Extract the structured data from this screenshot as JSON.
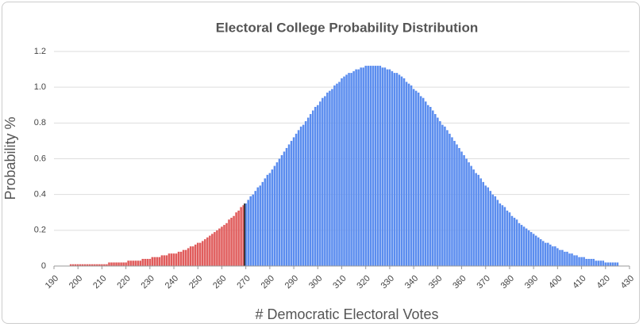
{
  "chart_data": {
    "type": "bar",
    "title": "Electoral College Probability Distribution",
    "x_label": "# Democratic Electoral Votes",
    "y_label": "Probability %",
    "color": "#5b8def",
    "below_color": "#e05c5c",
    "threshold": 270,
    "threshold_color": "#333333",
    "xlim": [
      190,
      430
    ],
    "xticks": [
      190,
      200,
      210,
      220,
      230,
      240,
      250,
      260,
      270,
      280,
      290,
      300,
      310,
      320,
      330,
      340,
      350,
      360,
      370,
      380,
      390,
      400,
      410,
      420,
      430
    ],
    "ylim": [
      0,
      1.2
    ],
    "yticks": [
      0,
      0.2,
      0.4,
      0.6,
      0.8,
      {
        "value": 1,
        "label": "1.0"
      },
      1.2
    ],
    "grid": true,
    "x": [
      197,
      198,
      199,
      200,
      201,
      202,
      203,
      204,
      205,
      206,
      207,
      208,
      209,
      210,
      211,
      212,
      213,
      214,
      215,
      216,
      217,
      218,
      219,
      220,
      221,
      222,
      223,
      224,
      225,
      226,
      227,
      228,
      229,
      230,
      231,
      232,
      233,
      234,
      235,
      236,
      237,
      238,
      239,
      240,
      241,
      242,
      243,
      244,
      245,
      246,
      247,
      248,
      249,
      250,
      251,
      252,
      253,
      254,
      255,
      256,
      257,
      258,
      259,
      260,
      261,
      262,
      263,
      264,
      265,
      266,
      267,
      268,
      269,
      270,
      271,
      272,
      273,
      274,
      275,
      276,
      277,
      278,
      279,
      280,
      281,
      282,
      283,
      284,
      285,
      286,
      287,
      288,
      289,
      290,
      291,
      292,
      293,
      294,
      295,
      296,
      297,
      298,
      299,
      300,
      301,
      302,
      303,
      304,
      305,
      306,
      307,
      308,
      309,
      310,
      311,
      312,
      313,
      314,
      315,
      316,
      317,
      318,
      319,
      320,
      321,
      322,
      323,
      324,
      325,
      326,
      327,
      328,
      329,
      330,
      331,
      332,
      333,
      334,
      335,
      336,
      337,
      338,
      339,
      340,
      341,
      342,
      343,
      344,
      345,
      346,
      347,
      348,
      349,
      350,
      351,
      352,
      353,
      354,
      355,
      356,
      357,
      358,
      359,
      360,
      361,
      362,
      363,
      364,
      365,
      366,
      367,
      368,
      369,
      370,
      371,
      372,
      373,
      374,
      375,
      376,
      377,
      378,
      379,
      380,
      381,
      382,
      383,
      384,
      385,
      386,
      387,
      388,
      389,
      390,
      391,
      392,
      393,
      394,
      395,
      396,
      397,
      398,
      399,
      400,
      401,
      402,
      403,
      404,
      405,
      406,
      407,
      408,
      409,
      410,
      411,
      412,
      413,
      414,
      415,
      416,
      417,
      418,
      419,
      420,
      421,
      422,
      423,
      424,
      425
    ],
    "values": [
      0.01,
      0.01,
      0.01,
      0.01,
      0.01,
      0.01,
      0.01,
      0.01,
      0.01,
      0.01,
      0.01,
      0.01,
      0.01,
      0.01,
      0.01,
      0.01,
      0.02,
      0.02,
      0.02,
      0.02,
      0.02,
      0.02,
      0.02,
      0.02,
      0.03,
      0.03,
      0.03,
      0.03,
      0.03,
      0.03,
      0.04,
      0.04,
      0.04,
      0.04,
      0.05,
      0.05,
      0.05,
      0.05,
      0.06,
      0.06,
      0.06,
      0.07,
      0.07,
      0.07,
      0.07,
      0.08,
      0.08,
      0.09,
      0.09,
      0.1,
      0.11,
      0.11,
      0.12,
      0.13,
      0.13,
      0.14,
      0.15,
      0.16,
      0.17,
      0.18,
      0.19,
      0.2,
      0.21,
      0.22,
      0.23,
      0.24,
      0.26,
      0.27,
      0.28,
      0.3,
      0.31,
      0.33,
      0.34,
      0.35,
      0.37,
      0.39,
      0.4,
      0.42,
      0.44,
      0.45,
      0.47,
      0.49,
      0.51,
      0.52,
      0.54,
      0.56,
      0.58,
      0.6,
      0.62,
      0.64,
      0.66,
      0.68,
      0.7,
      0.72,
      0.74,
      0.76,
      0.78,
      0.79,
      0.81,
      0.83,
      0.85,
      0.87,
      0.89,
      0.9,
      0.92,
      0.94,
      0.95,
      0.97,
      0.98,
      0.99,
      1.01,
      1.02,
      1.03,
      1.05,
      1.06,
      1.07,
      1.08,
      1.08,
      1.09,
      1.1,
      1.1,
      1.11,
      1.11,
      1.12,
      1.12,
      1.12,
      1.12,
      1.12,
      1.12,
      1.12,
      1.11,
      1.11,
      1.1,
      1.1,
      1.09,
      1.08,
      1.08,
      1.07,
      1.06,
      1.05,
      1.03,
      1.02,
      1.01,
      0.99,
      0.98,
      0.97,
      0.95,
      0.94,
      0.92,
      0.9,
      0.89,
      0.87,
      0.85,
      0.83,
      0.81,
      0.79,
      0.78,
      0.76,
      0.74,
      0.72,
      0.7,
      0.68,
      0.66,
      0.64,
      0.62,
      0.6,
      0.58,
      0.56,
      0.54,
      0.52,
      0.51,
      0.49,
      0.47,
      0.45,
      0.44,
      0.42,
      0.4,
      0.39,
      0.37,
      0.35,
      0.34,
      0.33,
      0.31,
      0.3,
      0.28,
      0.27,
      0.26,
      0.24,
      0.23,
      0.22,
      0.21,
      0.2,
      0.19,
      0.18,
      0.17,
      0.16,
      0.15,
      0.14,
      0.13,
      0.13,
      0.12,
      0.11,
      0.11,
      0.1,
      0.09,
      0.09,
      0.08,
      0.08,
      0.07,
      0.07,
      0.06,
      0.06,
      0.05,
      0.05,
      0.05,
      0.04,
      0.04,
      0.04,
      0.04,
      0.03,
      0.03,
      0.03,
      0.03,
      0.02,
      0.02,
      0.02,
      0.02,
      0.02,
      0.02
    ]
  }
}
